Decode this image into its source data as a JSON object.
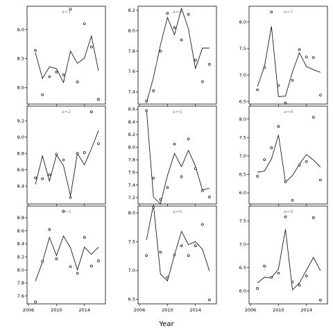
{
  "chart_data": {
    "type": "scatter",
    "xlabel": "Year",
    "x_ticks": [
      2006,
      2010,
      2014
    ],
    "xlim": [
      2005.8,
      2017
    ],
    "point_years": [
      2007,
      2008,
      2009,
      2010,
      2011,
      2012,
      2013,
      2014,
      2015,
      2016
    ],
    "panels": [
      {
        "label": "a=1",
        "ylim": [
          7.72,
          9.4
        ],
        "yticks": [
          8.0,
          8.5,
          9.0
        ],
        "points": [
          8.64,
          7.88,
          8.19,
          8.27,
          8.22,
          9.35,
          8.1,
          9.1,
          8.7,
          7.8
        ],
        "line": [
          8.6,
          8.16,
          8.36,
          8.33,
          8.09,
          8.63,
          8.42,
          8.51,
          8.89,
          8.29
        ]
      },
      {
        "label": "a=4",
        "ylim": [
          7.28,
          8.24
        ],
        "yticks": [
          7.4,
          7.6,
          7.8,
          8.0,
          8.2
        ],
        "points": [
          7.31,
          7.41,
          7.8,
          8.17,
          8.03,
          7.91,
          8.16,
          7.71,
          7.5,
          7.67
        ],
        "line": [
          7.29,
          7.54,
          7.86,
          8.13,
          7.96,
          8.22,
          8.02,
          7.63,
          7.83,
          7.83
        ]
      },
      {
        "label": "a=7",
        "ylim": [
          6.45,
          8.3
        ],
        "yticks": [
          6.5,
          7.0,
          7.5,
          8.0
        ],
        "points": [
          6.72,
          7.14,
          8.19,
          6.8,
          6.47,
          6.9,
          7.48,
          7.34,
          7.33,
          6.62
        ],
        "line": [
          6.78,
          7.16,
          7.92,
          6.59,
          6.6,
          7.06,
          7.42,
          7.16,
          7.1,
          7.05
        ]
      },
      {
        "label": "a=2",
        "ylim": [
          8.18,
          9.38
        ],
        "yticks": [
          8.4,
          8.6,
          8.8,
          9.0,
          9.2
        ],
        "points": [
          8.5,
          8.49,
          8.54,
          8.79,
          8.72,
          8.26,
          8.8,
          8.81,
          9.31,
          8.92
        ],
        "line": [
          8.42,
          8.77,
          8.46,
          8.78,
          8.65,
          8.28,
          8.8,
          8.66,
          8.86,
          9.08
        ]
      },
      {
        "label": "a=5",
        "ylim": [
          7.1,
          8.65
        ],
        "yticks": [
          7.2,
          7.4,
          7.6,
          7.8,
          8.0,
          8.2,
          8.4,
          8.6
        ],
        "points": [
          8.58,
          7.51,
          7.17,
          7.36,
          8.05,
          7.53,
          8.13,
          7.66,
          7.31,
          7.21
        ],
        "line": [
          8.6,
          7.21,
          7.1,
          7.55,
          7.9,
          7.69,
          7.95,
          7.7,
          7.32,
          7.35
        ]
      },
      {
        "label": "a=8",
        "ylim": [
          5.7,
          8.35
        ],
        "yticks": [
          6.0,
          6.5,
          7.0,
          7.5,
          8.0
        ],
        "points": [
          6.45,
          6.9,
          7.22,
          7.8,
          6.3,
          5.8,
          6.75,
          6.85,
          8.05,
          6.35
        ],
        "line": [
          6.56,
          6.59,
          6.92,
          7.57,
          6.29,
          6.47,
          6.78,
          7.04,
          6.89,
          6.7
        ]
      },
      {
        "label": "a=3",
        "ylim": [
          7.48,
          8.98
        ],
        "yticks": [
          7.6,
          7.8,
          8.0,
          8.2,
          8.4,
          8.6,
          8.8
        ],
        "points": [
          7.51,
          8.13,
          8.62,
          8.17,
          8.9,
          8.05,
          7.95,
          8.5,
          8.06,
          8.14
        ],
        "line": [
          7.83,
          8.12,
          8.5,
          8.22,
          8.52,
          8.34,
          8.0,
          8.35,
          8.24,
          8.35
        ]
      },
      {
        "label": "a=6",
        "ylim": [
          6.42,
          8.12
        ],
        "yticks": [
          6.5,
          7.0,
          7.5,
          8.0
        ],
        "points": [
          7.26,
          8.1,
          7.32,
          6.88,
          7.27,
          7.43,
          7.26,
          7.43,
          7.8,
          6.49
        ],
        "line": [
          7.53,
          8.14,
          6.94,
          6.82,
          7.27,
          7.68,
          7.45,
          7.5,
          7.37,
          6.99
        ]
      },
      {
        "label": "a=9",
        "ylim": [
          5.72,
          7.82
        ],
        "yticks": [
          6.0,
          6.5,
          7.0,
          7.5
        ],
        "points": [
          6.05,
          6.53,
          6.29,
          6.38,
          7.59,
          6.19,
          6.12,
          6.32,
          7.57,
          5.8
        ],
        "line": [
          6.17,
          6.29,
          6.28,
          6.47,
          7.32,
          6.02,
          6.17,
          6.44,
          6.72,
          6.43
        ]
      }
    ]
  }
}
